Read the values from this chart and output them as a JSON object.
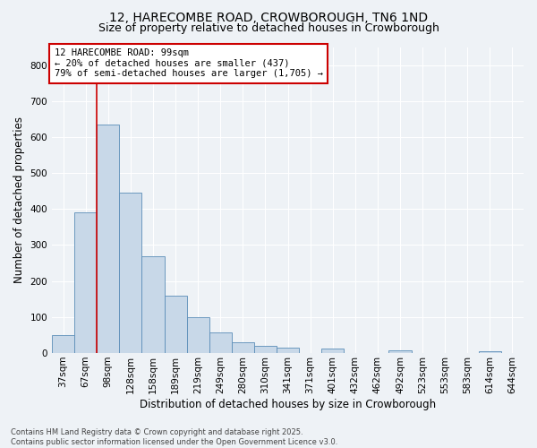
{
  "title": "12, HARECOMBE ROAD, CROWBOROUGH, TN6 1ND",
  "subtitle": "Size of property relative to detached houses in Crowborough",
  "xlabel": "Distribution of detached houses by size in Crowborough",
  "ylabel": "Number of detached properties",
  "bar_labels": [
    "37sqm",
    "67sqm",
    "98sqm",
    "128sqm",
    "158sqm",
    "189sqm",
    "219sqm",
    "249sqm",
    "280sqm",
    "310sqm",
    "341sqm",
    "371sqm",
    "401sqm",
    "432sqm",
    "462sqm",
    "492sqm",
    "523sqm",
    "553sqm",
    "583sqm",
    "614sqm",
    "644sqm"
  ],
  "bar_values": [
    50,
    390,
    635,
    445,
    270,
    160,
    100,
    57,
    30,
    20,
    15,
    0,
    12,
    0,
    0,
    8,
    0,
    0,
    0,
    5,
    0
  ],
  "bar_color": "#c8d8e8",
  "bar_edge_color": "#5b8db8",
  "redline_index": 2,
  "redline_label": "12 HARECOMBE ROAD: 99sqm",
  "annotation_line1": "← 20% of detached houses are smaller (437)",
  "annotation_line2": "79% of semi-detached houses are larger (1,705) →",
  "annotation_box_color": "#ffffff",
  "annotation_box_edge": "#cc0000",
  "footer_line1": "Contains HM Land Registry data © Crown copyright and database right 2025.",
  "footer_line2": "Contains public sector information licensed under the Open Government Licence v3.0.",
  "bg_color": "#eef2f6",
  "plot_bg_color": "#eef2f6",
  "ylim": [
    0,
    850
  ],
  "yticks": [
    0,
    100,
    200,
    300,
    400,
    500,
    600,
    700,
    800
  ],
  "grid_color": "#ffffff",
  "title_fontsize": 10,
  "subtitle_fontsize": 9,
  "axis_label_fontsize": 8.5,
  "tick_fontsize": 7.5,
  "annotation_fontsize": 7.5,
  "footer_fontsize": 6
}
